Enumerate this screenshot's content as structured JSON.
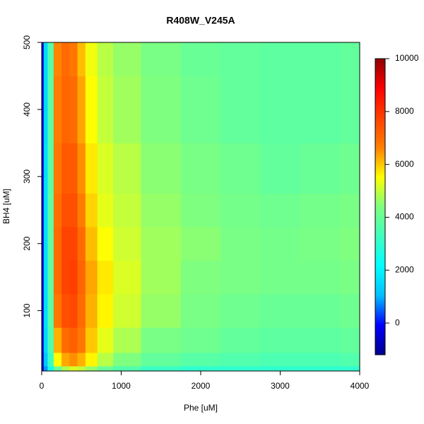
{
  "chart_data": {
    "type": "contour",
    "title": "R408W_V245A",
    "x_label": "Phe [uM]",
    "y_label": "BH4 [uM]",
    "x": [
      0,
      50,
      100,
      200,
      300,
      400,
      500,
      600,
      800,
      1000,
      1500,
      2000,
      2500,
      3000,
      3500,
      4000
    ],
    "y": [
      10,
      25,
      50,
      100,
      150,
      200,
      250,
      300,
      400,
      500
    ],
    "z": [
      [
        -800,
        800,
        2500,
        4000,
        4800,
        5200,
        5000,
        4600,
        4000,
        3600,
        3200,
        3000,
        3000,
        3000,
        3000,
        3000
      ],
      [
        -600,
        1200,
        3200,
        5500,
        6300,
        6500,
        6200,
        5600,
        4900,
        4400,
        3900,
        3700,
        3600,
        3500,
        3500,
        3600
      ],
      [
        -500,
        1500,
        3500,
        6200,
        7000,
        7200,
        6800,
        6000,
        5300,
        4800,
        4300,
        4100,
        3900,
        3800,
        3800,
        3900
      ],
      [
        -500,
        1600,
        3700,
        6800,
        7500,
        7600,
        7000,
        6200,
        5600,
        5100,
        4600,
        4300,
        4100,
        4000,
        4000,
        4100
      ],
      [
        -500,
        1600,
        3800,
        7000,
        7700,
        7800,
        7100,
        6300,
        5700,
        5200,
        4700,
        4400,
        4300,
        4200,
        4200,
        4300
      ],
      [
        -500,
        1600,
        3800,
        7000,
        7700,
        7700,
        7000,
        6100,
        5500,
        5100,
        4700,
        4500,
        4300,
        4200,
        4300,
        4400
      ],
      [
        -500,
        1600,
        3800,
        6900,
        7500,
        7500,
        6700,
        5900,
        5300,
        5000,
        4600,
        4400,
        4200,
        4100,
        4200,
        4300
      ],
      [
        -500,
        1600,
        3700,
        6800,
        7300,
        7300,
        6500,
        5700,
        5200,
        4900,
        4500,
        4300,
        4100,
        3900,
        4000,
        4100
      ],
      [
        -500,
        1500,
        3700,
        6700,
        7100,
        7000,
        6300,
        5500,
        5000,
        4700,
        4400,
        4100,
        3900,
        3800,
        3800,
        3900
      ],
      [
        -500,
        1500,
        3600,
        6600,
        7000,
        6800,
        6100,
        5400,
        4900,
        4600,
        4300,
        4000,
        3900,
        3800,
        3800,
        3900
      ]
    ],
    "xlim": [
      0,
      4000
    ],
    "xticks": [
      0,
      1000,
      2000,
      3000,
      4000
    ],
    "ylim": [
      10,
      500
    ],
    "yticks": [
      100,
      200,
      300,
      400,
      500
    ],
    "zlim": [
      -1200,
      10000
    ],
    "zticks": [
      0,
      2000,
      4000,
      6000,
      8000,
      10000
    ],
    "colormap": [
      "#00008b",
      "#0000ff",
      "#00bfff",
      "#00ffff",
      "#3fffbf",
      "#7fff7f",
      "#ffff00",
      "#ff7f00",
      "#ff4000",
      "#ff0000",
      "#8b0000"
    ]
  }
}
